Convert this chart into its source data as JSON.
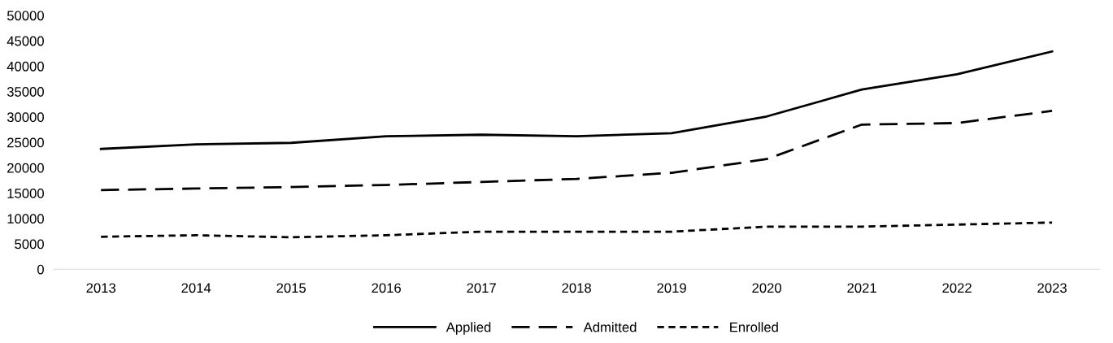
{
  "chart_data": {
    "type": "line",
    "categories": [
      "2013",
      "2014",
      "2015",
      "2016",
      "2017",
      "2018",
      "2019",
      "2020",
      "2021",
      "2022",
      "2023"
    ],
    "series": [
      {
        "name": "Applied",
        "color": "#000000",
        "line_style": "solid",
        "values": [
          23700,
          24600,
          24900,
          26200,
          26500,
          26200,
          26800,
          30100,
          35400,
          38400,
          42900
        ]
      },
      {
        "name": "Admitted",
        "color": "#000000",
        "line_style": "dashed",
        "values": [
          15600,
          15900,
          16200,
          16600,
          17200,
          17800,
          19000,
          21700,
          28500,
          28800,
          31200
        ]
      },
      {
        "name": "Enrolled",
        "color": "#000000",
        "line_style": "dotted",
        "values": [
          6400,
          6700,
          6300,
          6700,
          7400,
          7400,
          7400,
          8400,
          8400,
          8800,
          9200
        ]
      }
    ],
    "ylim": [
      0,
      50000
    ],
    "yticks": [
      0,
      5000,
      10000,
      15000,
      20000,
      25000,
      30000,
      35000,
      40000,
      45000,
      50000
    ],
    "grid": false,
    "legend": "bottom",
    "marker": "none"
  }
}
